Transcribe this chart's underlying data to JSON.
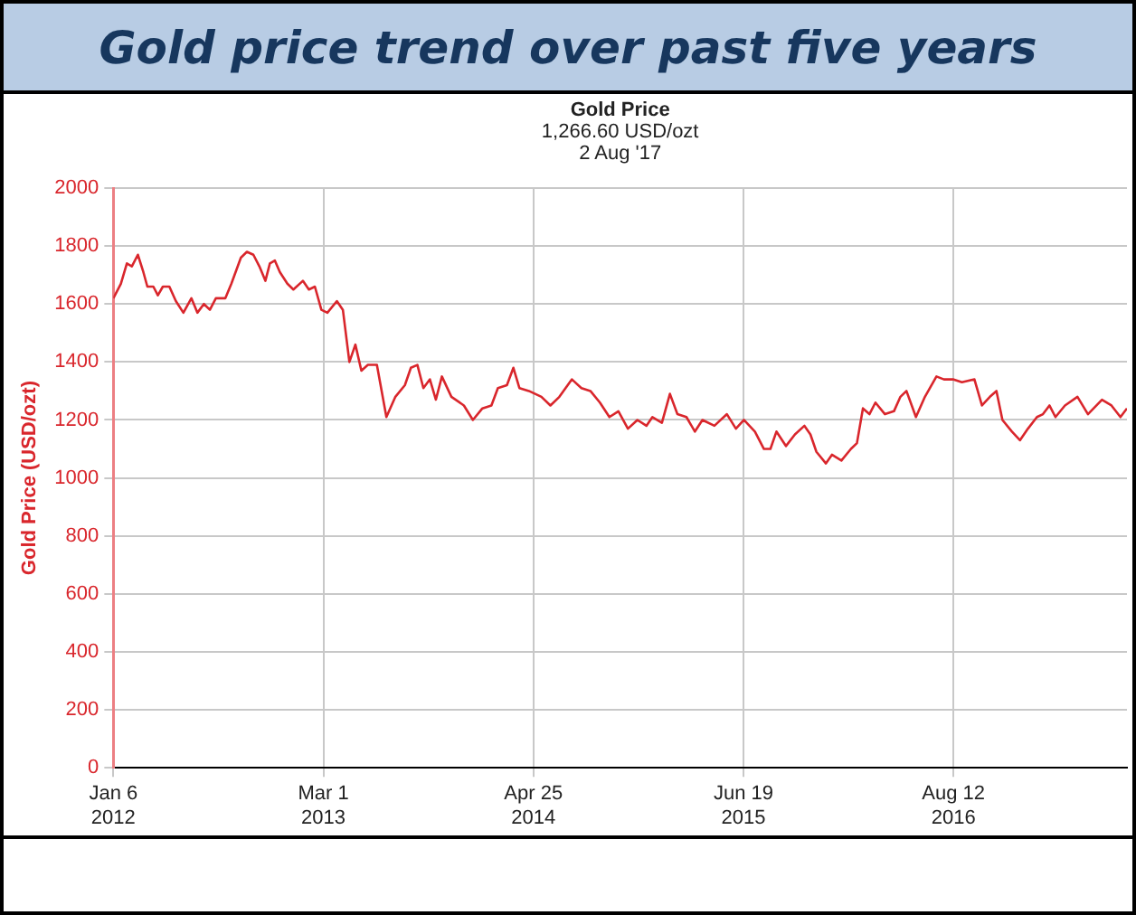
{
  "chart_data": {
    "type": "line",
    "title": "Gold price trend over past five years",
    "subtitle": "Gold Price",
    "annotations": [
      "1,266.60 USD/ozt",
      "2 Aug '17"
    ],
    "ylabel": "Gold Price (USD/ozt)",
    "x": [
      "2012-01-06",
      "2012-01-21",
      "2012-02-02",
      "2012-02-12",
      "2012-02-24",
      "2012-03-06",
      "2012-03-14",
      "2012-03-26",
      "2012-04-04",
      "2012-04-14",
      "2012-04-27",
      "2012-05-10",
      "2012-05-25",
      "2012-06-10",
      "2012-06-22",
      "2012-07-05",
      "2012-07-17",
      "2012-07-29",
      "2012-08-17",
      "2012-08-29",
      "2012-09-17",
      "2012-09-29",
      "2012-10-12",
      "2012-10-24",
      "2012-11-05",
      "2012-11-14",
      "2012-11-24",
      "2012-12-04",
      "2012-12-19",
      "2012-12-31",
      "2013-01-19",
      "2013-01-31",
      "2013-02-12",
      "2013-02-25",
      "2013-03-09",
      "2013-03-28",
      "2013-04-09",
      "2013-04-22",
      "2013-05-04",
      "2013-05-16",
      "2013-05-29",
      "2013-06-16",
      "2013-07-05",
      "2013-07-23",
      "2013-08-11",
      "2013-08-23",
      "2013-09-05",
      "2013-09-17",
      "2013-09-30",
      "2013-10-12",
      "2013-10-24",
      "2013-11-12",
      "2013-12-07",
      "2013-12-25",
      "2014-01-13",
      "2014-01-31",
      "2014-02-13",
      "2014-03-03",
      "2014-03-16",
      "2014-03-28",
      "2014-04-16",
      "2014-05-11",
      "2014-05-29",
      "2014-06-16",
      "2014-07-11",
      "2014-07-30",
      "2014-08-17",
      "2014-09-05",
      "2014-09-24",
      "2014-10-12",
      "2014-10-31",
      "2014-11-19",
      "2014-12-07",
      "2014-12-19",
      "2015-01-07",
      "2015-01-23",
      "2015-02-07",
      "2015-02-25",
      "2015-03-14",
      "2015-03-29",
      "2015-04-22",
      "2015-05-17",
      "2015-06-04",
      "2015-06-20",
      "2015-07-12",
      "2015-07-30",
      "2015-08-12",
      "2015-08-24",
      "2015-09-12",
      "2015-09-30",
      "2015-10-19",
      "2015-10-31",
      "2015-11-12",
      "2015-12-01",
      "2015-12-13",
      "2016-01-01",
      "2016-01-20",
      "2016-02-01",
      "2016-02-13",
      "2016-02-26",
      "2016-03-09",
      "2016-03-28",
      "2016-04-15",
      "2016-04-28",
      "2016-05-10",
      "2016-05-29",
      "2016-06-16",
      "2016-07-09",
      "2016-07-24",
      "2016-08-11",
      "2016-08-29",
      "2016-09-23",
      "2016-10-08",
      "2016-10-24",
      "2016-11-06",
      "2016-11-18",
      "2016-12-07",
      "2016-12-23",
      "2017-01-08",
      "2017-01-26",
      "2017-02-07",
      "2017-02-20",
      "2017-03-04",
      "2017-03-23",
      "2017-04-17",
      "2017-05-08",
      "2017-06-05",
      "2017-06-24",
      "2017-07-12",
      "2017-07-25"
    ],
    "series": [
      {
        "color": "#d9262c",
        "values": [
          1620,
          1670,
          1740,
          1730,
          1770,
          1710,
          1660,
          1660,
          1630,
          1660,
          1660,
          1610,
          1570,
          1620,
          1570,
          1600,
          1580,
          1620,
          1620,
          1670,
          1760,
          1780,
          1770,
          1730,
          1680,
          1740,
          1750,
          1710,
          1670,
          1650,
          1680,
          1650,
          1660,
          1580,
          1570,
          1610,
          1580,
          1400,
          1460,
          1370,
          1390,
          1390,
          1210,
          1280,
          1320,
          1380,
          1390,
          1310,
          1340,
          1270,
          1350,
          1280,
          1250,
          1200,
          1240,
          1250,
          1310,
          1320,
          1380,
          1310,
          1300,
          1280,
          1250,
          1280,
          1340,
          1310,
          1300,
          1260,
          1210,
          1230,
          1170,
          1200,
          1180,
          1210,
          1190,
          1290,
          1220,
          1210,
          1160,
          1200,
          1180,
          1220,
          1170,
          1200,
          1160,
          1100,
          1100,
          1160,
          1110,
          1150,
          1180,
          1150,
          1090,
          1050,
          1080,
          1060,
          1100,
          1120,
          1240,
          1220,
          1260,
          1220,
          1230,
          1280,
          1300,
          1210,
          1280,
          1350,
          1340,
          1340,
          1330,
          1340,
          1250,
          1280,
          1300,
          1200,
          1160,
          1130,
          1170,
          1210,
          1220,
          1250,
          1210,
          1250,
          1280,
          1220,
          1270,
          1250,
          1210,
          1240
        ]
      }
    ],
    "xlim": [
      "2012-01-06",
      "2017-07-25"
    ],
    "xticks": [
      {
        "value": "2012-01-06",
        "label": "Jan 6\n2012"
      },
      {
        "value": "2013-03-01",
        "label": "Mar 1\n2013"
      },
      {
        "value": "2014-04-25",
        "label": "Apr 25\n2014"
      },
      {
        "value": "2015-06-19",
        "label": "Jun 19\n2015"
      },
      {
        "value": "2016-08-12",
        "label": "Aug 12\n2016"
      }
    ],
    "ylim": [
      0,
      2000
    ],
    "yticks": [
      0,
      200,
      400,
      600,
      800,
      1000,
      1200,
      1400,
      1600,
      1800,
      2000
    ],
    "grid": true,
    "legend": false,
    "marker": "none",
    "line_style": "solid"
  }
}
